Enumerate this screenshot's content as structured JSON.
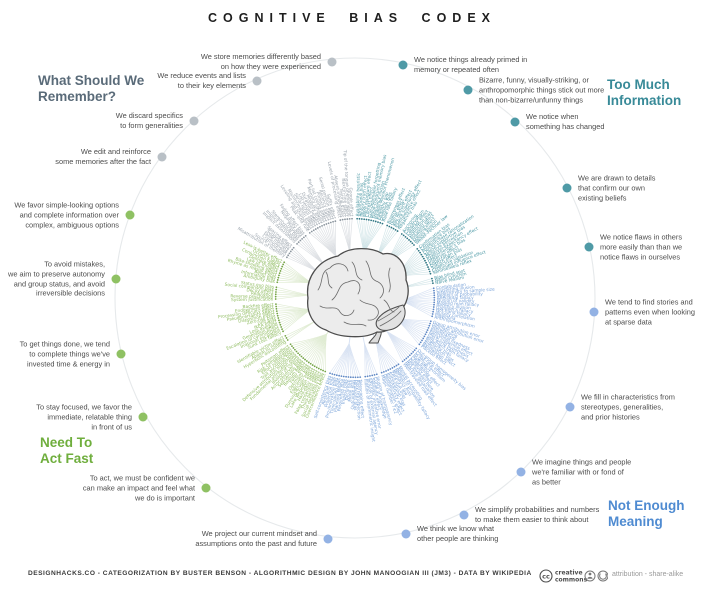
{
  "title": "COGNITIVE BIAS CODEX",
  "quadrants": {
    "remember": {
      "label": "What Should We\nRemember?",
      "heading_color": "#5a6b79",
      "label_color": "#9aa3ac",
      "dot_color": "#8a949d",
      "branch_color": "#dcdfe3",
      "callout_dot_color": "#b9c0c6"
    },
    "too_much": {
      "label": "Too Much\nInformation",
      "heading_color": "#388a98",
      "label_color": "#4f9aa6",
      "dot_color": "#2f7683",
      "branch_color": "#d2e5e8",
      "callout_dot_color": "#4f9aa6"
    },
    "not_enough": {
      "label": "Not Enough\nMeaning",
      "heading_color": "#4f8bd1",
      "label_color": "#7ba4d9",
      "dot_color": "#5e87c4",
      "branch_color": "#d9e3f3",
      "callout_dot_color": "#93b2e4"
    },
    "act_fast": {
      "label": "Need To\nAct Fast",
      "heading_color": "#6fae3d",
      "label_color": "#8fbc60",
      "dot_color": "#74a345",
      "branch_color": "#e0ecd3",
      "callout_dot_color": "#8fc163"
    }
  },
  "clusters": [
    {
      "id": "edit-reinforce",
      "quadrant": "remember",
      "callout": "We edit and reinforce\nsome memories after the fact",
      "biases": [
        "Misattribution of memory",
        "Source confusion",
        "Cryptomnesia",
        "False memory",
        "Suggestibility",
        "Spacing effect"
      ]
    },
    {
      "id": "discard-specifics",
      "quadrant": "remember",
      "callout": "We discard specifics\nto form generalities",
      "biases": [
        "Implicit associations",
        "Implicit stereotypes",
        "Stereotypical bias",
        "Prejudice",
        "Negativity bias",
        "Fading affect bias"
      ]
    },
    {
      "id": "reduce-events",
      "quadrant": "remember",
      "callout": "We reduce events and lists\nto their key elements",
      "biases": [
        "Peak–end rule",
        "Leveling and sharpening",
        "Misinformation effect",
        "Serial recall effect",
        "List-length effect",
        "Duration neglect",
        "Modality effect",
        "Memory inhibition",
        "Part-list cueing effect",
        "Primacy effect",
        "Recency effect",
        "Serial position effect",
        "Suffix effect"
      ]
    },
    {
      "id": "store-memories",
      "quadrant": "remember",
      "callout": "We store memories differently based\non how they were experienced",
      "biases": [
        "Levels of processing effect",
        "Absent-mindedness",
        "Testing effect",
        "Next-in-line effect",
        "Tip of the tongue phenomenon",
        "Google effect"
      ]
    },
    {
      "id": "primed-repeated",
      "quadrant": "too_much",
      "callout": "We notice things already primed in\nmemory or repeated often",
      "biases": [
        "Availability heuristic",
        "Attentional bias",
        "Illusory truth effect",
        "Mere exposure effect",
        "Context effect",
        "Cue-dependent forgetting",
        "Mood-congruent memory bias",
        "Frequency illusion",
        "Baader-Meinhof Phenomenon",
        "Empathy gap",
        "Omission bias",
        "Base rate fallacy"
      ]
    },
    {
      "id": "bizarre-sticks-out",
      "quadrant": "too_much",
      "callout": "Bizarre, funny, visually-striking, or\nanthropomorphic things stick out more\nthan non-bizarre/unfunny things",
      "biases": [
        "Bizarreness effect",
        "Humor effect",
        "Von Restorff effect",
        "Picture superiority effect",
        "Self-relevance effect",
        "Negativity bias"
      ]
    },
    {
      "id": "notice-change",
      "quadrant": "too_much",
      "callout": "We notice when\nsomething has changed",
      "biases": [
        "Anchoring",
        "Conservatism",
        "Contrast effect",
        "Distinction bias",
        "Focusing effect",
        "Framing effect",
        "Money illusion",
        "Weber–Fechner law"
      ]
    },
    {
      "id": "confirm-beliefs",
      "quadrant": "too_much",
      "callout": "We are drawn to details\nthat confirm our own\nexisting beliefs",
      "biases": [
        "Confirmation bias",
        "Congruence bias",
        "Post-purchase rationalization",
        "Choice-supportive bias",
        "Selective perception",
        "Observer-expectancy effect",
        "Experimenter's bias",
        "Observer effect",
        "Expectation bias",
        "Ostrich effect",
        "Subjective validation",
        "Continued influence effect",
        "Semmelweis reflex"
      ]
    },
    {
      "id": "flaws-in-others",
      "quadrant": "too_much",
      "callout": "We notice flaws in others\nmore easily than than we\nnotice flaws in ourselves",
      "biases": [
        "Bias blind spot",
        "Naïve cynicism",
        "Naïve realism"
      ]
    },
    {
      "id": "stories-patterns",
      "quadrant": "not_enough",
      "callout": "We tend to find stories and\npatterns even when looking\nat sparse data",
      "biases": [
        "Confabulation",
        "Clustering illusion",
        "Insensitivity to sample size",
        "Neglect of probability",
        "Anecdotal fallacy",
        "Illusion of validity",
        "Masked man fallacy",
        "Recency illusion",
        "Gambler's fallacy",
        "Hot-hand fallacy",
        "Illusory correlation",
        "Pareidolia",
        "Anthropomorphism"
      ]
    },
    {
      "id": "fill-stereotypes",
      "quadrant": "not_enough",
      "callout": "We fill in characteristics from\nstereotypes, generalities,\nand prior histories",
      "biases": [
        "Group attribution error",
        "Ultimate attribution error",
        "Stereotyping",
        "Essentialism",
        "Functional fixedness",
        "Moral credential effect",
        "Just-world hypothesis",
        "Argument from fallacy",
        "Authority bias",
        "Automation bias",
        "Bandwagon effect",
        "Placebo effect"
      ]
    },
    {
      "id": "familiar-better",
      "quadrant": "not_enough",
      "callout": "We imagine things and people\nwe're familiar with or fond of\nas better",
      "biases": [
        "Out-group homogeneity bias",
        "Cross-race effect",
        "In-group favoritism",
        "Halo effect",
        "Cheerleader effect",
        "Positivity effect",
        "Not invented here",
        "Reactive devaluation",
        "Well-traveled road effect"
      ]
    },
    {
      "id": "simplify-numbers",
      "quadrant": "not_enough",
      "callout": "We simplify probabilities and numbers\nto make them easier to think about",
      "biases": [
        "Mental accounting",
        "Appeal to probability fallacy",
        "Normalcy bias",
        "Murphy's law",
        "Zero sum bias",
        "Survivorship bias",
        "Subadditivity effect",
        "Denomination effect",
        "Magic number 7±2"
      ]
    },
    {
      "id": "know-others-thinking",
      "quadrant": "not_enough",
      "callout": "We think we know what\nother people are thinking",
      "biases": [
        "Illusion of transparency",
        "Curse of knowledge",
        "Spotlight effect",
        "Extrinsic incentive error",
        "Illusion of external agency",
        "Illusion of asymmetric insight"
      ]
    },
    {
      "id": "project-mindset",
      "quadrant": "not_enough",
      "callout": "We project our current mindset and\nassumptions onto the past and future",
      "biases": [
        "Telescoping effect",
        "Rosy retrospection",
        "Hindsight bias",
        "Outcome bias",
        "Moral luck",
        "Declinism",
        "Impact bias",
        "Pessimism bias",
        "Planning fallacy",
        "Time-saving bias",
        "Pro-innovation bias",
        "Projection bias",
        "Restraint bias",
        "Self-consistency bias"
      ]
    },
    {
      "id": "act-confidence",
      "quadrant": "act_fast",
      "callout": "To act, we must be confident we\ncan make an impact and feel what\nwe do is important",
      "biases": [
        "Overconfidence effect",
        "Social desirability bias",
        "Third-person effect",
        "False consensus effect",
        "Hard-easy effect",
        "Lake Wobegon effect",
        "Dunning-Kruger effect",
        "Egocentric bias",
        "Optimism bias",
        "Forer effect",
        "Barnum effect",
        "Self-serving bias",
        "Actor-observer bias",
        "Illusion of control",
        "Fundamental attribution error",
        "Defensive attribution hypothesis",
        "Trait ascription bias",
        "Effort justification",
        "Risk compensation",
        "Peltzman effect"
      ]
    },
    {
      "id": "stay-focused",
      "quadrant": "act_fast",
      "callout": "To stay focused, we favor the\nimmediate, relatable thing\nin front of us",
      "biases": [
        "Hyperbolic discounting",
        "Appeal to novelty",
        "Identifiable victim effect"
      ]
    },
    {
      "id": "get-things-done",
      "quadrant": "act_fast",
      "callout": "To get things done, we tend\nto complete things we've\ninvested time & energy in",
      "biases": [
        "Sunk cost fallacy",
        "Irrational escalation",
        "Escalation of commitment",
        "Generation effect",
        "Loss aversion",
        "IKEA effect",
        "Unit bias",
        "Zero-risk bias",
        "Disposition effect",
        "Pseudocertainty effect",
        "Processing difficulty effect",
        "Endowment effect",
        "Backfire effect"
      ]
    },
    {
      "id": "avoid-mistakes",
      "quadrant": "act_fast",
      "callout": "To avoid mistakes,\nwe aim to preserve autonomy\nand group status, and avoid\nirreversible decisions",
      "biases": [
        "System justification",
        "Reverse psychology",
        "Reactance",
        "Decoy effect",
        "Social comparison bias",
        "Status quo bias"
      ]
    },
    {
      "id": "simple-options",
      "quadrant": "act_fast",
      "callout": "We favor simple-looking options\nand complete information over\ncomplex, ambiguous options",
      "biases": [
        "Ambiguity bias",
        "Information bias",
        "Belief bias",
        "Rhyme as reason effect",
        "Bike-shedding effect",
        "Law of Triviality",
        "Delmore effect",
        "Conjunction fallacy",
        "Occam's razor",
        "Less-is-better effect"
      ]
    }
  ],
  "footer": {
    "credits": "DESIGNHACKS.CO - CATEGORIZATION BY BUSTER BENSON - ALGORITHMIC DESIGN BY JOHN MANOOGIAN III (JM3) - DATA BY WIKIPEDIA",
    "cc_label": "creative commons",
    "license": "attribution - share-alike"
  }
}
